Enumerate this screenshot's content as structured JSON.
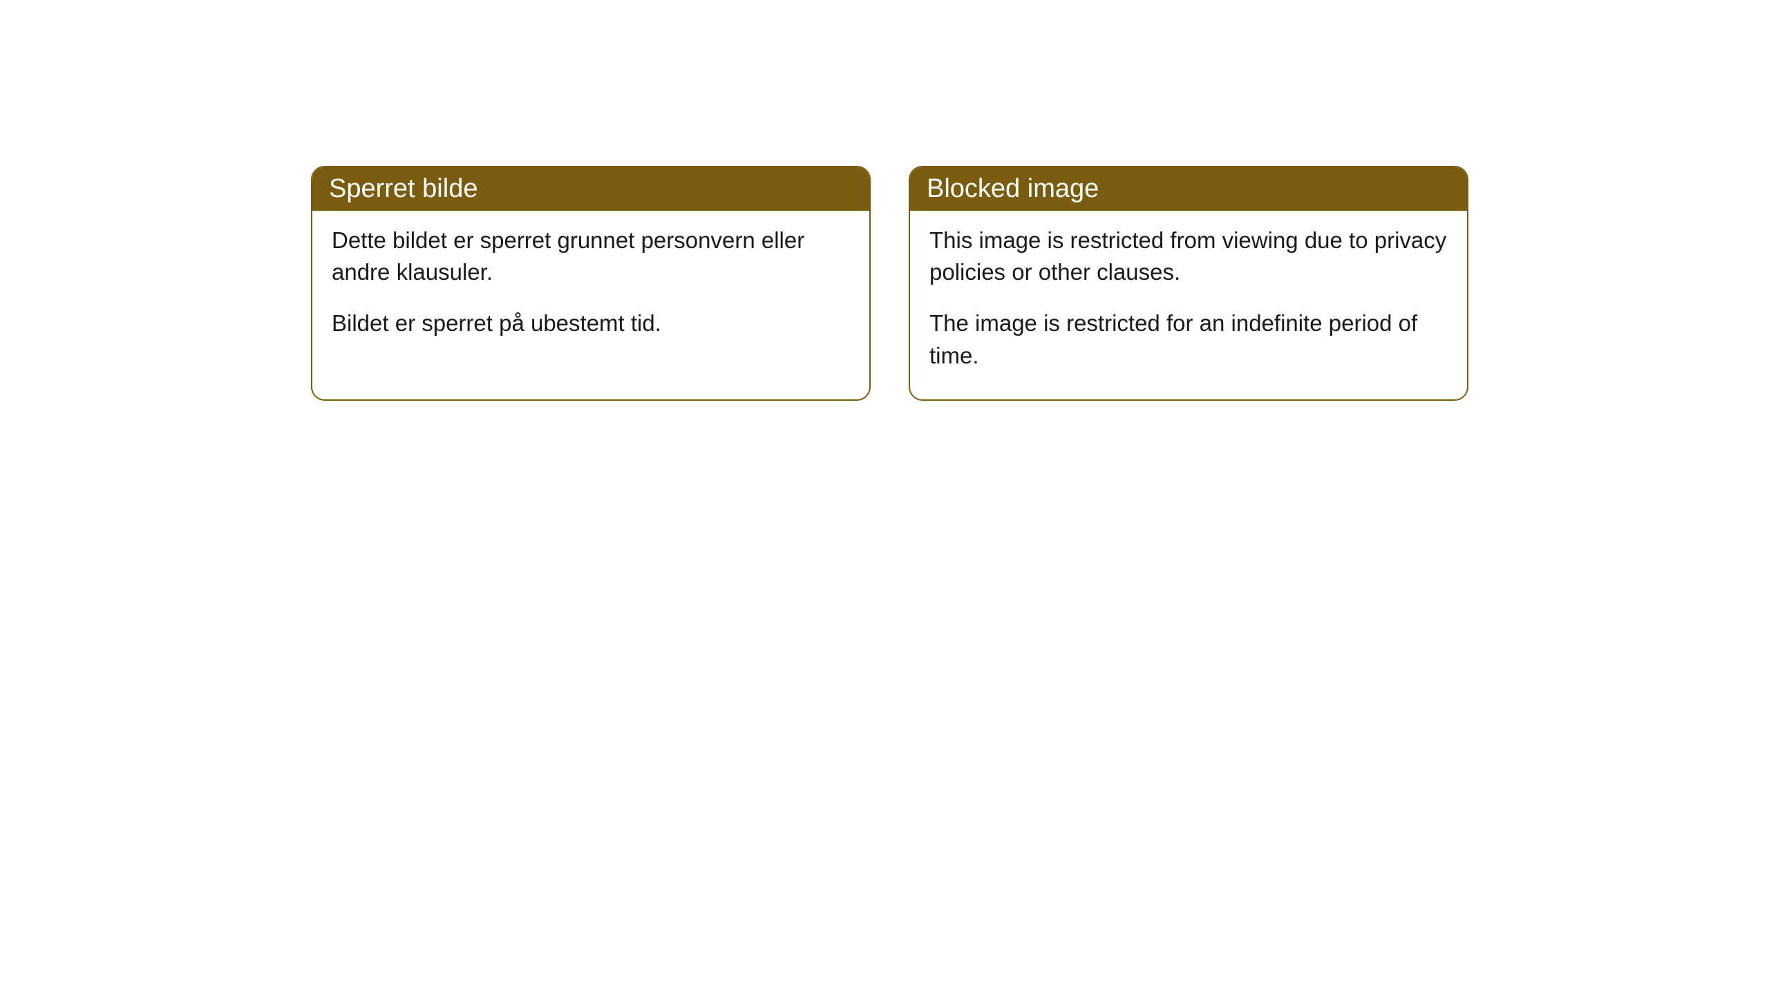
{
  "cards": [
    {
      "title": "Sperret bilde",
      "paragraph1": "Dette bildet er sperret grunnet personvern eller andre klausuler.",
      "paragraph2": "Bildet er sperret på ubestemt tid."
    },
    {
      "title": "Blocked image",
      "paragraph1": "This image is restricted from viewing due to privacy policies or other clauses.",
      "paragraph2": "The image is restricted for an indefinite period of time."
    }
  ],
  "styling": {
    "header_background": "#7a5c10",
    "header_text_color": "#ffffff",
    "border_color": "#7a5c10",
    "body_background": "#ffffff",
    "body_text_color": "#1a1a1a",
    "border_radius": 20,
    "title_fontsize": 38,
    "body_fontsize": 33
  }
}
